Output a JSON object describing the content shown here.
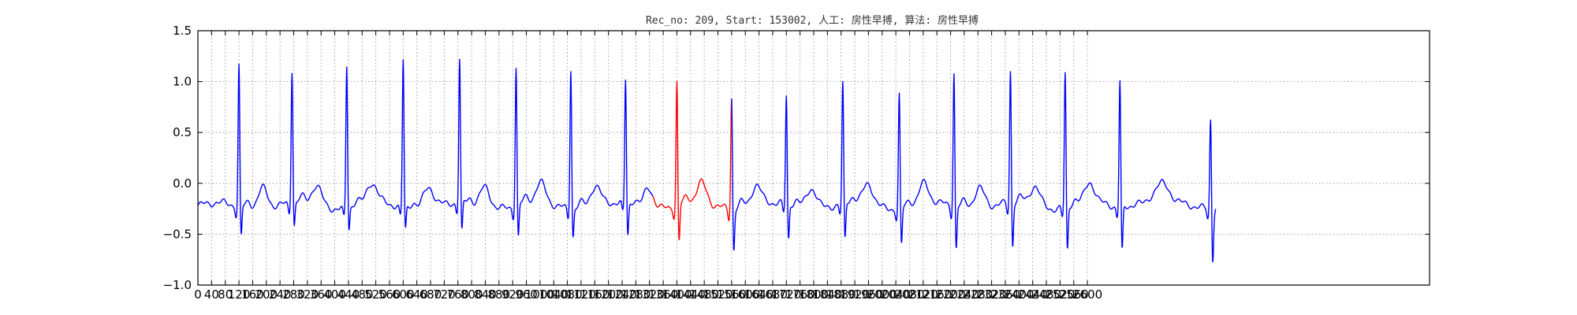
{
  "chart_data": {
    "type": "line",
    "title": "Rec_no: 209, Start: 153002, 人工: 房性早搏, 算法: 房性早搏",
    "xlabel": "",
    "ylabel": "",
    "xlim": [
      0,
      3600
    ],
    "ylim": [
      -1.0,
      1.5
    ],
    "grid": true,
    "x_tick_labels": [
      "0",
      "40",
      "80",
      "120",
      "160",
      "200",
      "240",
      "280",
      "320",
      "360",
      "400",
      "440",
      "480",
      "520",
      "560",
      "600",
      "640",
      "680",
      "720",
      "760",
      "800",
      "840",
      "880",
      "920",
      "960",
      "1000",
      "1040",
      "1080",
      "1120",
      "1160",
      "1200",
      "1240",
      "1280",
      "1320",
      "1360",
      "1400",
      "1440",
      "1480",
      "1520",
      "1560",
      "1600",
      "1640",
      "1680",
      "1720",
      "1760",
      "1800",
      "1840",
      "1880",
      "1920",
      "1960",
      "2000",
      "2040",
      "2080",
      "2120",
      "2160",
      "2200",
      "2240",
      "2280",
      "2320",
      "2360",
      "2400",
      "2440",
      "2480",
      "2520",
      "2560",
      "2600"
    ],
    "y_ticks": [
      1.5,
      1.0,
      0.5,
      0.0,
      -0.5,
      -1.0
    ],
    "y_tick_labels": [
      "1.5",
      "1.0",
      "0.5",
      "0.0",
      "−0.5",
      "−1.0"
    ],
    "colors": {
      "normal": "#0000ff",
      "highlight": "#ff0000",
      "grid": "#888888"
    },
    "r_peaks": [
      {
        "x": 120,
        "r": 1.18,
        "s": -0.66
      },
      {
        "x": 275,
        "r": 1.11,
        "s": -0.57
      },
      {
        "x": 435,
        "r": 1.19,
        "s": -0.57
      },
      {
        "x": 600,
        "r": 1.24,
        "s": -0.58
      },
      {
        "x": 765,
        "r": 1.21,
        "s": -0.65
      },
      {
        "x": 930,
        "r": 1.17,
        "s": -0.68
      },
      {
        "x": 1090,
        "r": 1.18,
        "s": -0.63
      },
      {
        "x": 1250,
        "r": 1.02,
        "s": -0.67
      },
      {
        "x": 1400,
        "r": 1.02,
        "s": -0.72
      },
      {
        "x": 1560,
        "r": 0.91,
        "s": -0.76
      },
      {
        "x": 1720,
        "r": 0.86,
        "s": -0.7
      },
      {
        "x": 1885,
        "r": 0.98,
        "s": -0.72
      },
      {
        "x": 2050,
        "r": 0.92,
        "s": -0.73
      },
      {
        "x": 2210,
        "r": 1.13,
        "s": -0.78
      },
      {
        "x": 2375,
        "r": 1.11,
        "s": -0.78
      },
      {
        "x": 2535,
        "r": 1.12,
        "s": -0.79
      },
      {
        "x": 2695,
        "r": 1.05,
        "s": -0.8
      },
      {
        "x": 2960,
        "r": 0.7,
        "s": -0.85
      }
    ],
    "highlight_range": [
      1330,
      1560
    ],
    "signal_end": 2975
  }
}
